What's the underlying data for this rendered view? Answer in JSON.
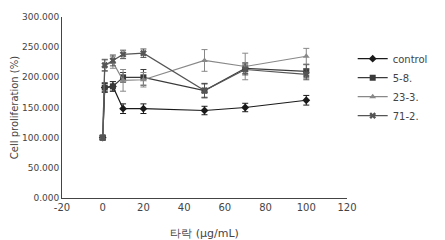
{
  "chart_data": {
    "type": "line",
    "xlabel": "타락 (μg/mL)",
    "ylabel": "Cell proliferation (%)",
    "x": [
      0,
      1,
      5,
      10,
      20,
      50,
      70,
      100
    ],
    "series": [
      {
        "name": "control",
        "color": "#1a1a1a",
        "marker": "diamond",
        "values": [
          100,
          183,
          185,
          148,
          148,
          145,
          150,
          162
        ],
        "yerr": [
          3,
          7,
          8,
          8,
          8,
          7,
          7,
          8
        ]
      },
      {
        "name": "5-8.",
        "color": "#3a3a3a",
        "marker": "square",
        "values": [
          100,
          183,
          185,
          200,
          200,
          178,
          215,
          210
        ],
        "yerr": [
          3,
          8,
          8,
          8,
          13,
          12,
          9,
          11
        ]
      },
      {
        "name": "23-3.",
        "color": "#888888",
        "marker": "triangle-up",
        "values": [
          100,
          220,
          225,
          195,
          196,
          228,
          218,
          235
        ],
        "yerr": [
          4,
          10,
          10,
          18,
          12,
          18,
          22,
          13
        ]
      },
      {
        "name": "71-2.",
        "color": "#555555",
        "marker": "x",
        "values": [
          100,
          220,
          228,
          238,
          240,
          178,
          213,
          205
        ],
        "yerr": [
          4,
          9,
          9,
          7,
          7,
          11,
          9,
          9
        ]
      }
    ],
    "xlim": [
      -20,
      120
    ],
    "xticks": [
      -20,
      0,
      20,
      40,
      60,
      80,
      100,
      120
    ],
    "ylim": [
      0,
      300
    ],
    "yticks": [
      {
        "value": 0,
        "label": "0.000"
      },
      {
        "value": 50,
        "label": "50.000"
      },
      {
        "value": 100,
        "label": "100.000"
      },
      {
        "value": 150,
        "label": "150.000"
      },
      {
        "value": 200,
        "label": "200.000"
      },
      {
        "value": 250,
        "label": "250.000"
      },
      {
        "value": 300,
        "label": "300.000"
      }
    ],
    "grid": false,
    "legend": "right"
  }
}
